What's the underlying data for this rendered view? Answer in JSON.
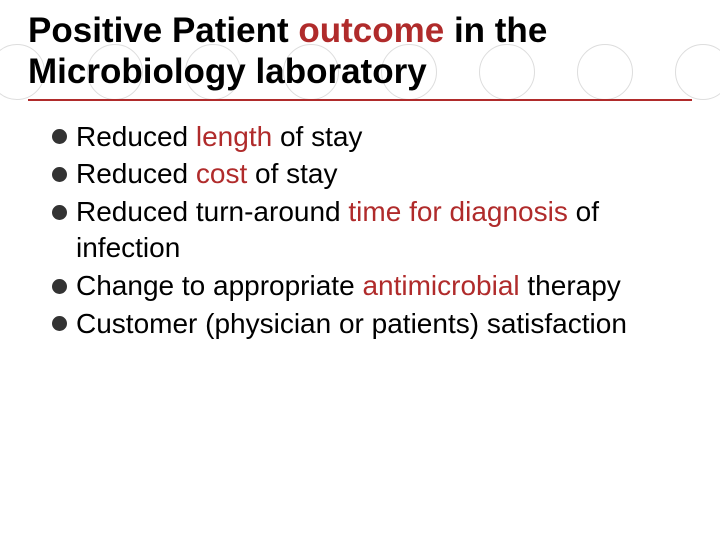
{
  "slide": {
    "title_parts": [
      {
        "text": "Positive Patient ",
        "color": "#000000"
      },
      {
        "text": "outcome ",
        "color": "#b02b2b"
      },
      {
        "text": "in the Microbiology laboratory",
        "color": "#000000"
      }
    ],
    "title_underline_color": "#b02b2b",
    "title_fontsize": 35,
    "bullet_fontsize": 28,
    "bullet_marker_color": "#333333",
    "accent_color": "#b02b2b",
    "background_circle_color": "#dddddd",
    "background_circle_count": 8,
    "bullets": [
      [
        {
          "text": "Reduced ",
          "color": "#000000"
        },
        {
          "text": "length ",
          "color": "#b02b2b"
        },
        {
          "text": "of stay",
          "color": "#000000"
        }
      ],
      [
        {
          "text": "Reduced ",
          "color": "#000000"
        },
        {
          "text": "cost ",
          "color": "#b02b2b"
        },
        {
          "text": "of stay",
          "color": "#000000"
        }
      ],
      [
        {
          "text": "Reduced turn-around ",
          "color": "#000000"
        },
        {
          "text": "time for diagnosis ",
          "color": "#b02b2b"
        },
        {
          "text": "of infection",
          "color": "#000000"
        }
      ],
      [
        {
          "text": "Change to appropriate ",
          "color": "#000000"
        },
        {
          "text": "antimicrobial ",
          "color": "#b02b2b"
        },
        {
          "text": "therapy",
          "color": "#000000"
        }
      ],
      [
        {
          "text": "Customer (physician or patients) satisfaction",
          "color": "#000000"
        }
      ]
    ]
  }
}
